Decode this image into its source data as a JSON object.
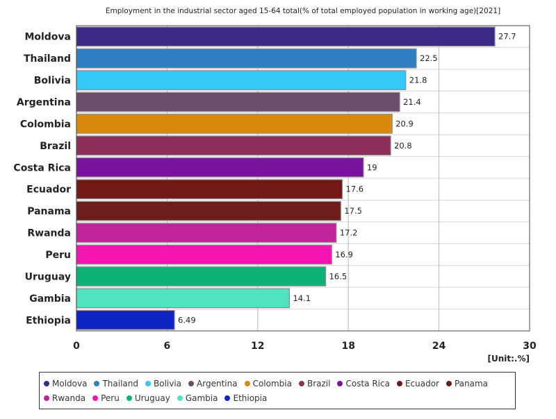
{
  "chart_data": {
    "type": "bar",
    "orientation": "horizontal",
    "title": "Employment in the industrial sector aged 15-64 total(% of total employed population in working age)[2021]",
    "unit_label": "[Unit:.%]",
    "categories": [
      "Moldova",
      "Thailand",
      "Bolivia",
      "Argentina",
      "Colombia",
      "Brazil",
      "Costa Rica",
      "Ecuador",
      "Panama",
      "Rwanda",
      "Peru",
      "Uruguay",
      "Gambia",
      "Ethiopia"
    ],
    "values": [
      27.7,
      22.5,
      21.8,
      21.4,
      20.9,
      20.8,
      19,
      17.6,
      17.5,
      17.2,
      16.9,
      16.5,
      14.1,
      6.49
    ],
    "value_labels": [
      "27.7",
      "22.5",
      "21.8",
      "21.4",
      "20.9",
      "20.8",
      "19",
      "17.6",
      "17.5",
      "17.2",
      "16.9",
      "16.5",
      "14.1",
      "6.49"
    ],
    "colors": [
      "#3d2a85",
      "#2e7fc4",
      "#33c8f5",
      "#6b4d6a",
      "#d98a0e",
      "#8a2e5a",
      "#7a129e",
      "#731717",
      "#6e1d1d",
      "#c0249a",
      "#f414b0",
      "#0bb377",
      "#4fe3c1",
      "#0f22c2"
    ],
    "xlim": [
      0,
      30
    ],
    "xticks": [
      0,
      6,
      12,
      18,
      24,
      30
    ],
    "grid": true,
    "legend_placement": "bottom",
    "legend": [
      "Moldova",
      "Thailand",
      "Bolivia",
      "Argentina",
      "Colombia",
      "Brazil",
      "Costa Rica",
      "Ecuador",
      "Panama",
      "Rwanda",
      "Peru",
      "Uruguay",
      "Gambia",
      "Ethiopia"
    ]
  }
}
